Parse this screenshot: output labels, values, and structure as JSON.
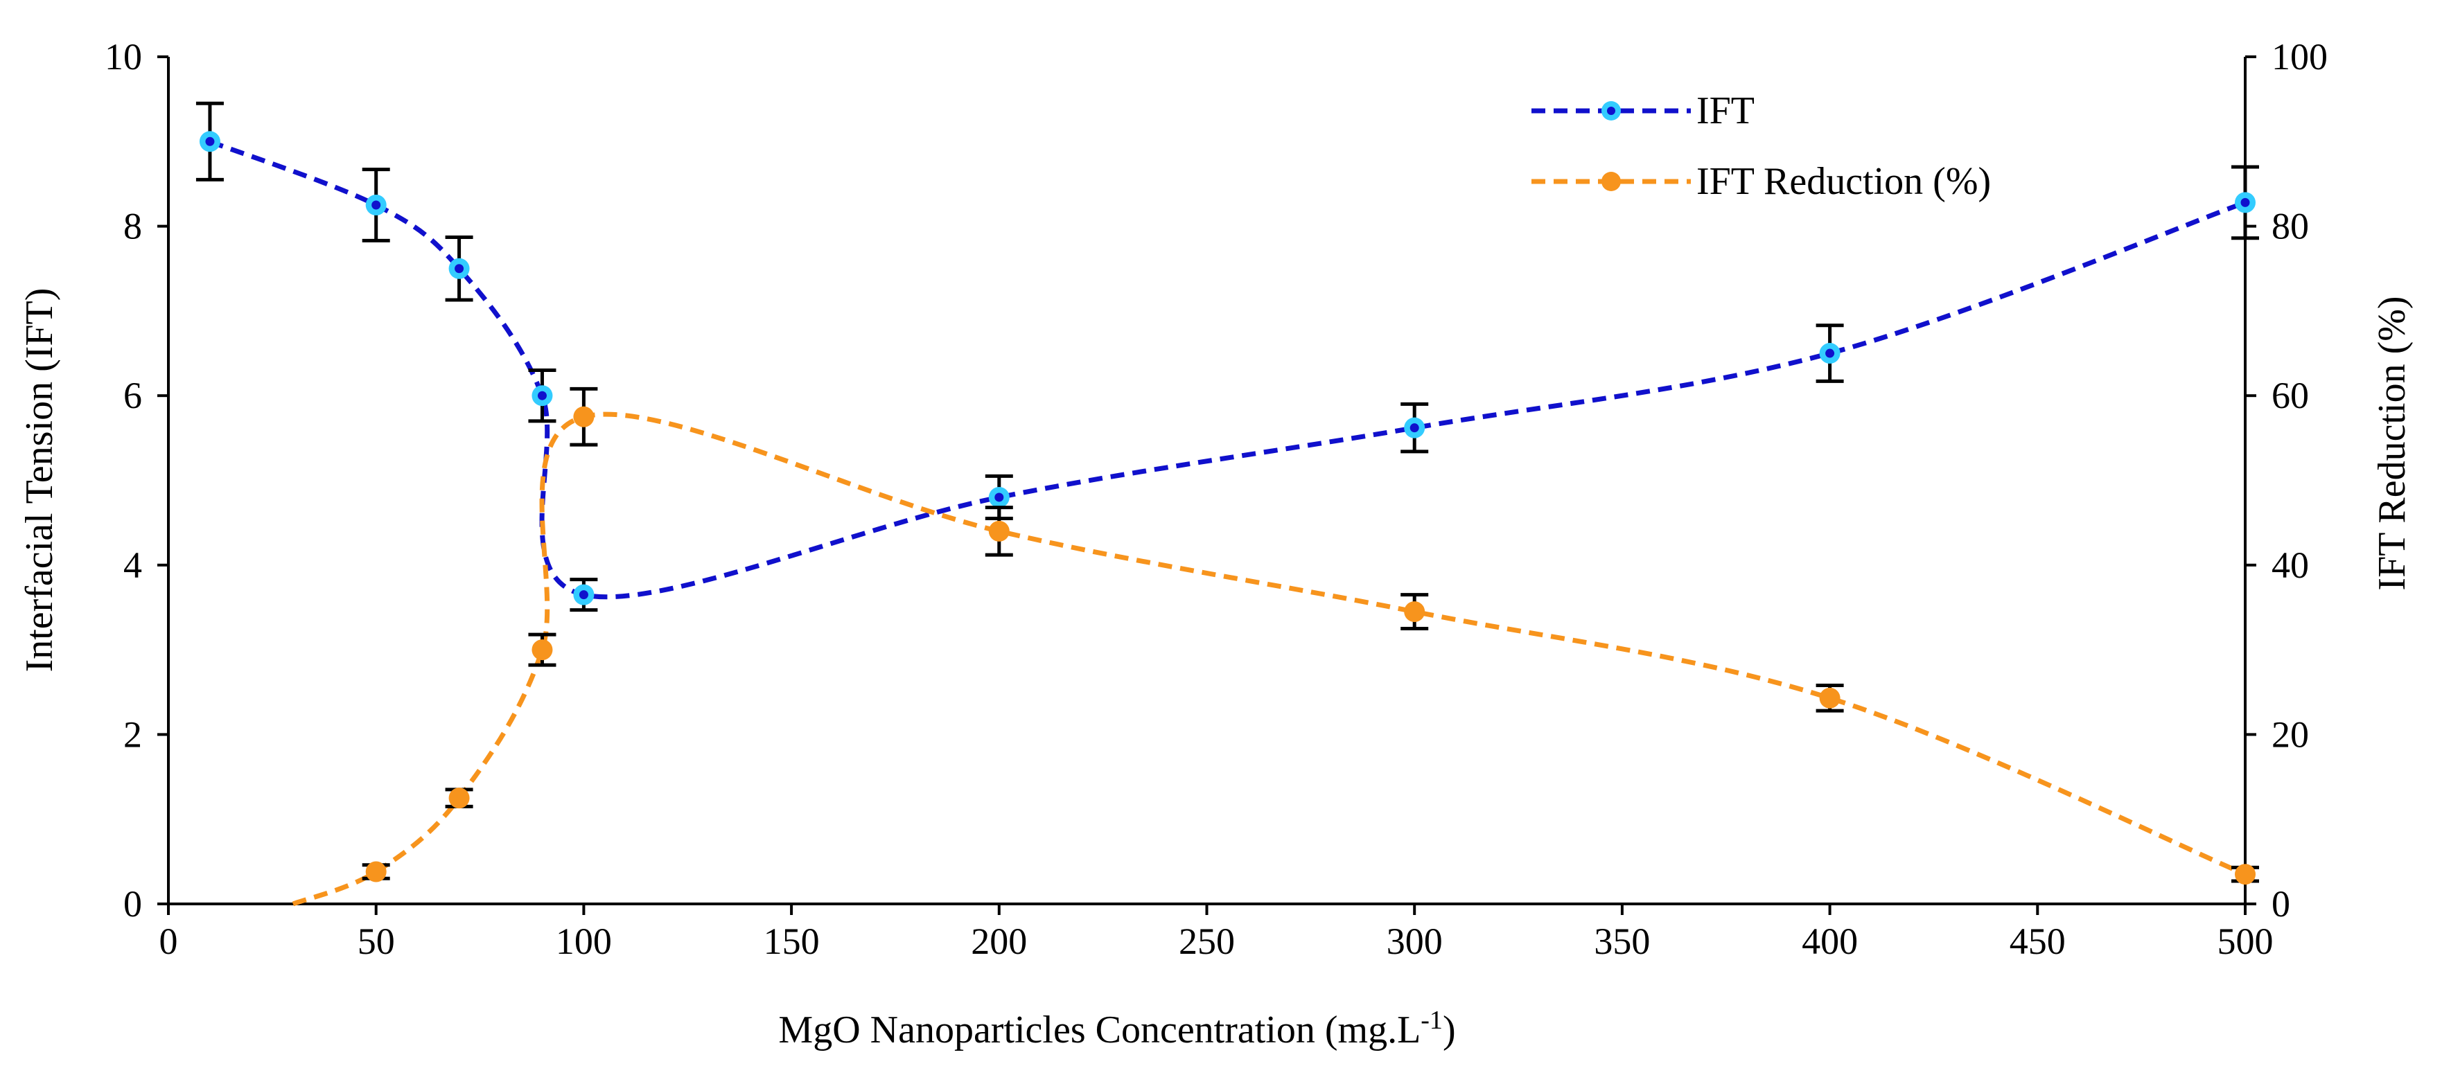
{
  "chart_data": {
    "type": "line",
    "x_axis": {
      "label": "MgO Nanoparticles Concentration (mg.L",
      "label_superscript": "-1",
      "label_suffix": ")",
      "range": [
        0,
        500
      ],
      "ticks": [
        "0",
        "50",
        "100",
        "150",
        "200",
        "250",
        "300",
        "350",
        "400",
        "450",
        "500"
      ]
    },
    "y_left_axis": {
      "label": "Interfacial Tension (IFT)",
      "range": [
        0,
        10
      ],
      "ticks": [
        "0",
        "2",
        "4",
        "6",
        "8",
        "10"
      ]
    },
    "y_right_axis": {
      "label": "IFT Reduction (%)",
      "range": [
        0,
        100
      ],
      "ticks": [
        "0",
        "20",
        "40",
        "60",
        "80",
        "100"
      ]
    },
    "legend_position": "top-right",
    "series": [
      {
        "name": "IFT",
        "axis": "left",
        "color": "#1010cc",
        "marker_fill": "#33ccff",
        "marker_center": "#1010cc",
        "x": [
          10,
          50,
          70,
          90,
          100,
          200,
          300,
          400,
          500
        ],
        "y": [
          9.0,
          8.25,
          7.5,
          6.0,
          3.65,
          4.8,
          5.62,
          6.5,
          8.28
        ],
        "error": [
          0.45,
          0.42,
          0.37,
          0.3,
          0.18,
          0.25,
          0.28,
          0.33,
          0.42
        ]
      },
      {
        "name": "IFT Reduction (%)",
        "axis": "right",
        "color": "#f7941d",
        "marker_fill": "#f7941d",
        "x": [
          50,
          70,
          90,
          100,
          200,
          300,
          400,
          500
        ],
        "y": [
          3.8,
          12.5,
          30.0,
          57.5,
          44.0,
          34.5,
          24.3,
          3.5
        ],
        "error": [
          0.8,
          1.0,
          1.8,
          3.3,
          2.8,
          2.0,
          1.5,
          0.8
        ]
      }
    ]
  }
}
